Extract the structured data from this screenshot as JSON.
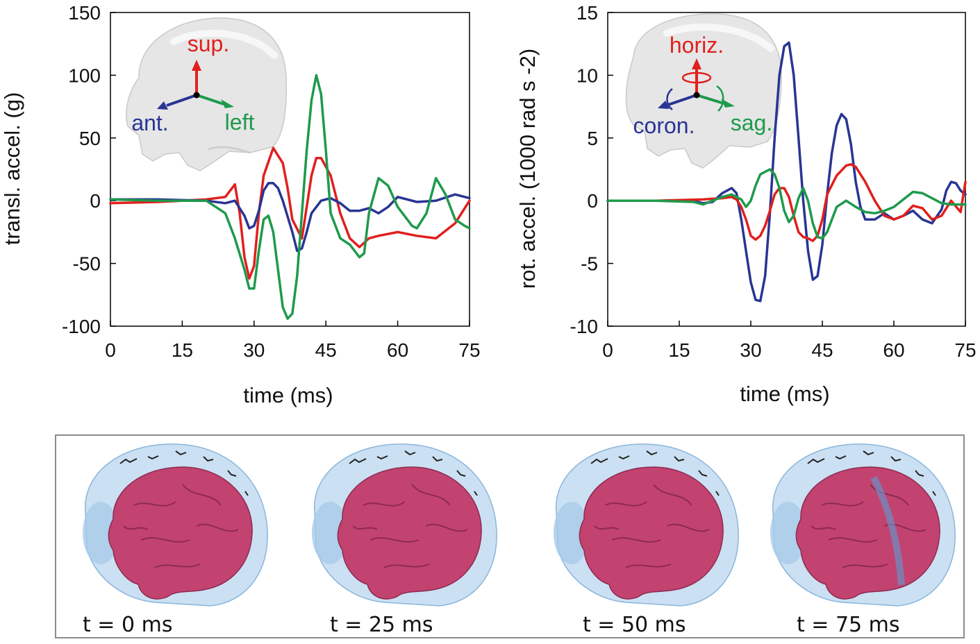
{
  "chart_data": [
    {
      "type": "line",
      "ylabel": "transl. accel. (g)",
      "xlabel": "time (ms)",
      "xlim": [
        0,
        75
      ],
      "ylim": [
        -100,
        150
      ],
      "xticks": [
        0,
        15,
        30,
        45,
        60,
        75
      ],
      "yticks": [
        -100,
        -50,
        0,
        50,
        100,
        150
      ],
      "grid": false,
      "legend": "inset axis labels on skull (top-left)",
      "annotations": [
        "sup.",
        "ant.",
        "left"
      ],
      "series": [
        {
          "name": "sup.",
          "color": "#e0201e",
          "x": [
            0,
            10,
            20,
            24,
            26,
            27,
            28,
            29,
            30,
            31,
            32,
            34,
            36,
            37,
            38,
            40,
            42,
            43,
            44,
            46,
            48,
            50,
            52,
            54,
            56,
            60,
            64,
            68,
            72,
            75
          ],
          "y": [
            -2,
            -1,
            1,
            3,
            13,
            -10,
            -45,
            -62,
            -52,
            -10,
            20,
            42,
            30,
            10,
            -15,
            -30,
            20,
            34,
            34,
            20,
            -10,
            -30,
            -37,
            -30,
            -28,
            -25,
            -28,
            -30,
            -18,
            0
          ]
        },
        {
          "name": "ant.",
          "color": "#283593",
          "x": [
            0,
            10,
            20,
            24,
            26,
            28,
            29,
            30,
            31,
            32,
            33,
            34,
            35,
            36,
            38,
            39,
            40,
            41,
            42,
            44,
            46,
            48,
            50,
            52,
            54,
            56,
            58,
            60,
            64,
            68,
            72,
            75
          ],
          "y": [
            1,
            1,
            0,
            -2,
            0,
            -12,
            -22,
            -20,
            -8,
            8,
            14,
            14,
            10,
            0,
            -25,
            -40,
            -38,
            -25,
            -10,
            0,
            2,
            -2,
            -8,
            -8,
            -6,
            -10,
            -5,
            3,
            -1,
            0,
            5,
            2
          ]
        },
        {
          "name": "left",
          "color": "#1e9a4c",
          "x": [
            0,
            10,
            20,
            22,
            24,
            26,
            28,
            29,
            30,
            31,
            32,
            33,
            34,
            35,
            36,
            37,
            38,
            39,
            40,
            41,
            42,
            43,
            44,
            45,
            46,
            48,
            50,
            52,
            53,
            54,
            56,
            58,
            60,
            62,
            63,
            64,
            66,
            68,
            70,
            72,
            74,
            75
          ],
          "y": [
            1,
            0,
            0,
            -5,
            -10,
            -30,
            -55,
            -70,
            -70,
            -40,
            -15,
            -12,
            -25,
            -55,
            -85,
            -94,
            -90,
            -60,
            -10,
            40,
            80,
            100,
            85,
            40,
            -10,
            -30,
            -35,
            -45,
            -42,
            -10,
            18,
            12,
            -5,
            -15,
            -20,
            -22,
            -10,
            18,
            5,
            -15,
            -20,
            -22
          ]
        }
      ]
    },
    {
      "type": "line",
      "ylabel": "rot. accel. (1000 rad s -2)",
      "xlabel": "time (ms)",
      "xlim": [
        0,
        75
      ],
      "ylim": [
        -10,
        15
      ],
      "xticks": [
        0,
        15,
        30,
        45,
        60,
        75
      ],
      "yticks": [
        -10,
        -5,
        0,
        5,
        10,
        15
      ],
      "grid": false,
      "legend": "inset axis labels on skull (top-left)",
      "annotations": [
        "horiz.",
        "coron.",
        "sag."
      ],
      "series": [
        {
          "name": "coron.",
          "color": "#283593",
          "x": [
            0,
            10,
            18,
            20,
            22,
            24,
            26,
            27,
            28,
            29,
            30,
            31,
            32,
            33,
            34,
            35,
            36,
            37,
            38,
            39,
            40,
            41,
            42,
            43,
            44,
            45,
            46,
            47,
            48,
            49,
            50,
            51,
            52,
            53,
            54,
            56,
            58,
            60,
            62,
            64,
            66,
            68,
            70,
            71,
            72,
            73,
            74,
            75
          ],
          "y": [
            0,
            0,
            0,
            -0.2,
            -0.1,
            0.6,
            1,
            0.6,
            -1.5,
            -4,
            -6.5,
            -7.9,
            -8,
            -6,
            -1,
            5,
            10,
            12.3,
            12.6,
            10,
            5,
            0,
            -4,
            -6.3,
            -6,
            -3.5,
            0.5,
            3.8,
            6,
            6.9,
            6.5,
            4.5,
            1.5,
            -0.5,
            -1.5,
            -1.5,
            -1,
            -1.5,
            -1.2,
            -0.8,
            -1.5,
            -1.8,
            -0.7,
            0.8,
            1.5,
            1.4,
            0.8,
            0.5
          ]
        },
        {
          "name": "horiz.",
          "color": "#e0201e",
          "x": [
            0,
            10,
            20,
            24,
            26,
            27,
            28,
            29,
            30,
            31,
            32,
            33,
            34,
            35,
            36,
            37,
            38,
            39,
            40,
            41,
            42,
            43,
            44,
            45,
            46,
            48,
            50,
            51,
            52,
            54,
            56,
            58,
            60,
            62,
            64,
            66,
            68,
            70,
            72,
            74,
            75
          ],
          "y": [
            0,
            0,
            0.1,
            0.2,
            0.3,
            0.1,
            -0.5,
            -1.5,
            -2.8,
            -3.1,
            -2.8,
            -2,
            -0.8,
            0.5,
            1,
            1,
            0.3,
            -1.2,
            -2.5,
            -2.9,
            -3,
            -3.2,
            -2.8,
            -1.5,
            0.5,
            2,
            2.8,
            2.9,
            2.7,
            1.5,
            0,
            -1.2,
            -1.5,
            -1.2,
            -0.4,
            -0.6,
            -1.5,
            -1.2,
            0,
            -0.9,
            1.5
          ]
        },
        {
          "name": "sag.",
          "color": "#1e9a4c",
          "x": [
            0,
            10,
            18,
            20,
            22,
            24,
            26,
            28,
            29,
            30,
            31,
            32,
            33,
            34,
            35,
            36,
            37,
            38,
            39,
            40,
            41,
            42,
            43,
            44,
            45,
            46,
            48,
            50,
            52,
            54,
            56,
            58,
            60,
            62,
            64,
            66,
            68,
            70,
            72,
            75
          ],
          "y": [
            0,
            0,
            -0.1,
            -0.3,
            0,
            0.3,
            0.5,
            0.1,
            -0.5,
            0,
            1.2,
            2.1,
            2.3,
            2.5,
            2.1,
            1,
            -0.8,
            -1.7,
            -1.2,
            0.2,
            1,
            0,
            -1.8,
            -2.9,
            -3,
            -2.5,
            -0.5,
            0,
            -0.5,
            -0.9,
            -1,
            -0.8,
            -0.5,
            0.1,
            0.7,
            0.6,
            0.2,
            -0.2,
            -0.3,
            -0.3
          ]
        }
      ]
    }
  ],
  "frames": [
    {
      "label": "t = 0 ms"
    },
    {
      "label": "t = 25 ms"
    },
    {
      "label": "t = 50 ms"
    },
    {
      "label": "t = 75 ms"
    }
  ],
  "colors": {
    "red": "#e0201e",
    "blue": "#283593",
    "green": "#1e9a4c",
    "brain": "#c2436f",
    "skull": "#b9d6ee"
  }
}
